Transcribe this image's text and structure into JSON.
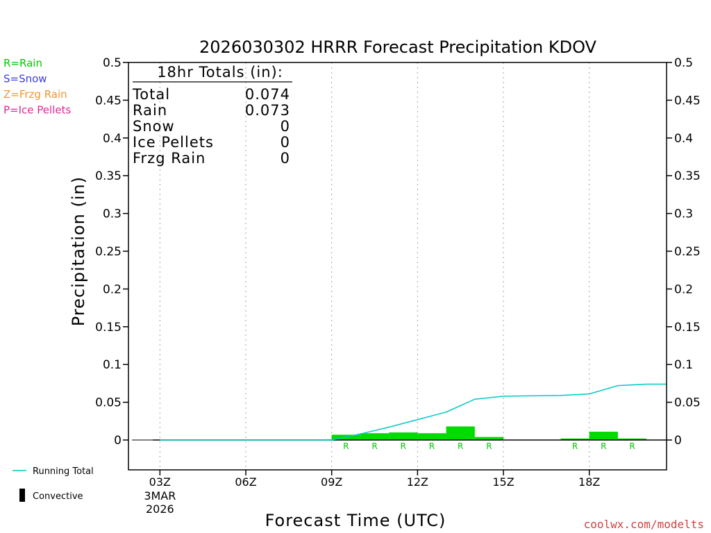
{
  "chart_data": {
    "type": "bar",
    "title": "2026030302 HRRR Forecast Precipitation KDOV",
    "xlabel": "Forecast Time (UTC)",
    "ylabel": "Precipitation (in)",
    "ylim": [
      0,
      0.5
    ],
    "y_ticks": [
      "0",
      "0.05",
      "0.1",
      "0.15",
      "0.2",
      "0.25",
      "0.3",
      "0.35",
      "0.4",
      "0.45",
      "0.5"
    ],
    "x_ticks": [
      {
        "hour": 3,
        "label": "03Z",
        "date_line1": "3MAR",
        "date_line2": "2026"
      },
      {
        "hour": 6,
        "label": "06Z"
      },
      {
        "hour": 9,
        "label": "09Z"
      },
      {
        "hour": 12,
        "label": "12Z"
      },
      {
        "hour": 15,
        "label": "15Z"
      },
      {
        "hour": 18,
        "label": "18Z"
      }
    ],
    "xlim_hours": [
      1.9,
      20.7
    ],
    "grid": "vertical-dotted",
    "hours": [
      3,
      4,
      5,
      6,
      7,
      8,
      9,
      10,
      11,
      12,
      13,
      14,
      15,
      16,
      17,
      18,
      19,
      20
    ],
    "hourly_rain": [
      0,
      0,
      0,
      0,
      0,
      0,
      0,
      0.007,
      0.009,
      0.01,
      0.009,
      0.018,
      0.004,
      0,
      0,
      0.002,
      0.011,
      0.002
    ],
    "running_total": [
      0,
      0,
      0,
      0,
      0,
      0,
      0,
      0.008,
      0.017,
      0.027,
      0.037,
      0.054,
      0.058,
      0.0585,
      0.059,
      0.061,
      0.072,
      0.074
    ],
    "ptype_markers": [
      {
        "hour": 10,
        "label": "R"
      },
      {
        "hour": 11,
        "label": "R"
      },
      {
        "hour": 12,
        "label": "R"
      },
      {
        "hour": 13,
        "label": "R"
      },
      {
        "hour": 14,
        "label": "R"
      },
      {
        "hour": 15,
        "label": "R"
      },
      {
        "hour": 18,
        "label": "R"
      },
      {
        "hour": 19,
        "label": "R"
      },
      {
        "hour": 20,
        "label": "R"
      }
    ],
    "legend_ptypes": [
      {
        "text": "R=Rain",
        "color": "#00c800"
      },
      {
        "text": "S=Snow",
        "color": "#3c3cdc"
      },
      {
        "text": "Z=Frzg Rain",
        "color": "#f09632"
      },
      {
        "text": "P=Ice Pellets",
        "color": "#dc2896"
      }
    ],
    "legend_lines": [
      {
        "text": "Running Total",
        "color": "#00c8c8"
      },
      {
        "text": "Convective",
        "color": "#000000"
      }
    ],
    "totals": {
      "header": "18hr Totals (in):",
      "rows": [
        {
          "label": "Total",
          "value": "0.074"
        },
        {
          "label": "Rain",
          "value": "0.073"
        },
        {
          "label": "Snow",
          "value": "0"
        },
        {
          "label": "Ice Pellets",
          "value": "0"
        },
        {
          "label": "Frzg Rain",
          "value": "0"
        }
      ]
    },
    "colors": {
      "bar": "#00dc00",
      "running_total": "#00c8c8",
      "grid": "#a0a0a0"
    }
  },
  "credit": "coolwx.com/modelts"
}
